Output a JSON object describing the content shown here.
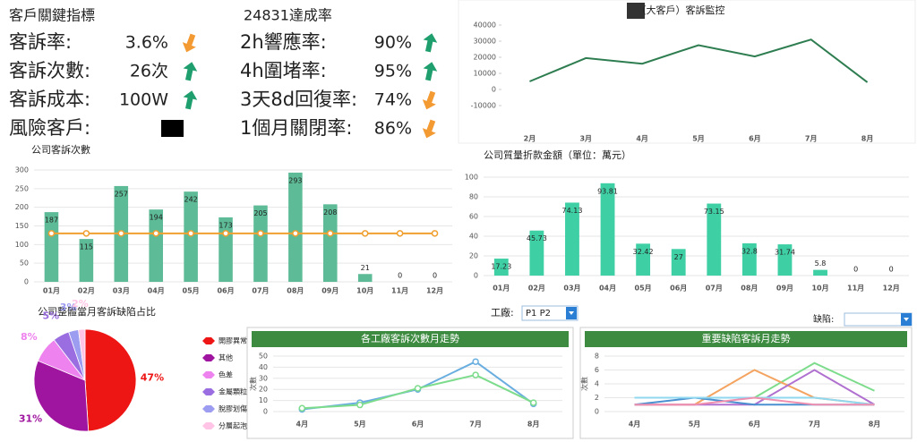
{
  "kpi": {
    "title": "客戶關鍵指標",
    "subtitle": "24831達成率",
    "arrow_colors": {
      "up": "#1f9e6e",
      "down": "#f39a33"
    },
    "left": [
      {
        "label": "客訴率:",
        "value": "3.6%",
        "trend": "down"
      },
      {
        "label": "客訴次數:",
        "value": "26次",
        "trend": "up"
      },
      {
        "label": "客訴成本:",
        "value": "100W",
        "trend": "up"
      },
      {
        "label": "風險客戶:"
      }
    ],
    "right": [
      {
        "label": "2h響應率:",
        "value": "90%",
        "trend": "up"
      },
      {
        "label": "4h圍堵率:",
        "value": "95%",
        "trend": "up"
      },
      {
        "label": "3天8d回復率:",
        "value": "74%",
        "trend": "down"
      },
      {
        "label": "1個月關閉率:",
        "value": "86%",
        "trend": "down"
      }
    ]
  },
  "filters": {
    "factory_label": "工廠:",
    "factory_value": "P1 P2",
    "defect_label": "缺陷:"
  },
  "chart_data": [
    {
      "type": "line",
      "title": "（大客戶）客訴監控",
      "categories": [
        "2月",
        "3月",
        "4月",
        "5月",
        "6月",
        "7月",
        "8月"
      ],
      "series": [
        {
          "color": "#2e7d50",
          "values": [
            5000,
            19500,
            16000,
            27500,
            20500,
            31000,
            4500
          ]
        }
      ],
      "ylim": [
        -10000,
        40000
      ],
      "yticks": [
        -10000,
        0,
        10000,
        20000,
        30000,
        40000
      ],
      "grid": false
    },
    {
      "type": "bar",
      "title": "公司客訴次數",
      "categories": [
        "01月",
        "02月",
        "03月",
        "04月",
        "05月",
        "06月",
        "07月",
        "08月",
        "09月",
        "10月",
        "11月",
        "12月"
      ],
      "series": [
        {
          "color": "#5dbb97",
          "values": [
            187,
            115,
            257,
            194,
            242,
            173,
            205,
            293,
            208,
            21,
            0,
            0
          ]
        },
        {
          "type": "line",
          "color": "#f0a030",
          "values": [
            130,
            130,
            130,
            130,
            130,
            130,
            130,
            130,
            130,
            130,
            130,
            130
          ]
        }
      ],
      "ylim": [
        0,
        300
      ],
      "yticks": [
        0,
        50,
        100,
        150,
        200,
        250,
        300
      ],
      "grid": true
    },
    {
      "type": "bar",
      "title": "公司質量折款金額（單位：萬元）",
      "categories": [
        "01月",
        "02月",
        "03月",
        "04月",
        "05月",
        "06月",
        "07月",
        "08月",
        "09月",
        "10月",
        "11月",
        "12月"
      ],
      "series": [
        {
          "color": "#3ecfa5",
          "values": [
            17.23,
            45.73,
            74.13,
            93.81,
            32.42,
            27,
            73.15,
            32.8,
            31.74,
            5.8,
            0,
            0
          ]
        }
      ],
      "ylim": [
        0,
        100
      ],
      "yticks": [
        0,
        20,
        40,
        60,
        80,
        100
      ],
      "grid": true
    },
    {
      "type": "pie",
      "title": "公司整體當月客訴缺陷占比",
      "categories": [
        "開膠異常",
        "其他",
        "色差",
        "金屬顆粒",
        "脫膠划傷",
        "分層起泡"
      ],
      "values": [
        47,
        31,
        8,
        5,
        3,
        2
      ],
      "value_labels": [
        "47%",
        "31%",
        "8%",
        "5%",
        "3%",
        "2%"
      ],
      "colors": [
        "#ee1515",
        "#a0159f",
        "#ee82ee",
        "#9a6ee0",
        "#9c9cf0",
        "#ffc4e6"
      ]
    },
    {
      "type": "line",
      "title": "各工廠客訴次數月走勢",
      "ylabel": "次數",
      "categories": [
        "4月",
        "5月",
        "6月",
        "7月",
        "8月"
      ],
      "markers": true,
      "series": [
        {
          "color": "#6aaee0",
          "values": [
            2,
            8,
            20,
            45,
            7
          ]
        },
        {
          "color": "#7ddc8c",
          "values": [
            3,
            6,
            21,
            33,
            8
          ]
        }
      ],
      "ylim": [
        0,
        50
      ],
      "yticks": [
        0,
        10,
        20,
        30,
        40,
        50
      ],
      "grid": true
    },
    {
      "type": "line",
      "title": "重要缺陷客訴月走勢",
      "ylabel": "次數",
      "categories": [
        "4月",
        "5月",
        "6月",
        "7月",
        "8月"
      ],
      "markers": false,
      "series": [
        {
          "color": "#7ddc8c",
          "values": [
            2,
            2,
            2,
            7,
            3
          ]
        },
        {
          "color": "#f4a460",
          "values": [
            1,
            1,
            6,
            2,
            1
          ]
        },
        {
          "color": "#b070d0",
          "values": [
            1,
            1,
            1,
            6,
            1
          ]
        },
        {
          "color": "#4a90d0",
          "values": [
            1,
            2,
            1,
            1,
            1
          ]
        },
        {
          "color": "#8fd8f0",
          "values": [
            2,
            2,
            2,
            2,
            1
          ]
        },
        {
          "color": "#f090b0",
          "values": [
            1,
            1,
            2,
            1,
            1
          ]
        }
      ],
      "ylim": [
        0,
        8
      ],
      "yticks": [
        0,
        2,
        4,
        6,
        8
      ],
      "grid": true
    }
  ]
}
